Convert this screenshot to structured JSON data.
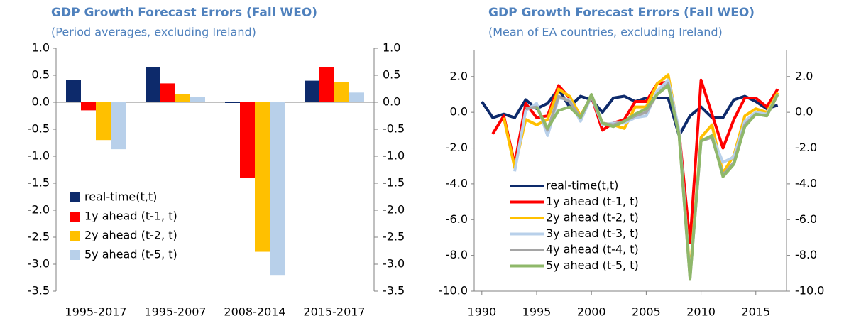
{
  "chart_data": [
    {
      "type": "bar",
      "title": "GDP Growth Forecast Errors (Fall  WEO)",
      "subtitle": "(Period averages, excluding Ireland)",
      "categories": [
        "1995-2017",
        "1995-2007",
        "2008-2014",
        "2015-2017"
      ],
      "series": [
        {
          "name": "real-time(t,t)",
          "color": "#0d2a6b",
          "values": [
            0.42,
            0.65,
            -0.01,
            0.4
          ]
        },
        {
          "name": "1y ahead (t-1, t)",
          "color": "#ff0000",
          "values": [
            -0.15,
            0.35,
            -1.4,
            0.65
          ]
        },
        {
          "name": "2y ahead (t-2, t)",
          "color": "#ffc000",
          "values": [
            -0.7,
            0.15,
            -2.77,
            0.37
          ]
        },
        {
          "name": "5y ahead (t-5, t)",
          "color": "#b8d0ea",
          "values": [
            -0.87,
            0.1,
            -3.2,
            0.18
          ]
        }
      ],
      "ylim": [
        -3.5,
        1.0
      ],
      "yticks": [
        {
          "value": 1.0,
          "label": "1.0"
        },
        0.5,
        {
          "value": 0.0,
          "label": "0.0"
        },
        -0.5,
        {
          "value": -1.0,
          "label": "-1.0"
        },
        -1.5,
        {
          "value": -2.0,
          "label": "-2.0"
        },
        -2.5,
        {
          "value": -3.0,
          "label": "-3.0"
        },
        -3.5
      ],
      "y2lim": [
        -3.5,
        1.0
      ],
      "y2ticks": [
        {
          "value": 1.0,
          "label": "1.0"
        },
        0.5,
        {
          "value": 0.0,
          "label": "0.0"
        },
        -0.5,
        {
          "value": -1.0,
          "label": "-1.0"
        },
        -1.5,
        {
          "value": -2.0,
          "label": "-2.0"
        },
        -2.5,
        {
          "value": -3.0,
          "label": "-3.0"
        },
        -3.5
      ],
      "legend": "lower left"
    },
    {
      "type": "line",
      "title": "GDP Growth Forecast Errors (Fall  WEO)",
      "subtitle": "(Mean of EA countries, excluding Ireland)",
      "x": [
        1990,
        1991,
        1992,
        1993,
        1994,
        1995,
        1996,
        1997,
        1998,
        1999,
        2000,
        2001,
        2002,
        2003,
        2004,
        2005,
        2006,
        2007,
        2008,
        2009,
        2010,
        2011,
        2012,
        2013,
        2014,
        2015,
        2016,
        2017
      ],
      "series": [
        {
          "name": "real-time(t,t)",
          "color": "#0d2a6b",
          "values": [
            0.6,
            -0.3,
            -0.1,
            -0.3,
            0.7,
            0.2,
            0.5,
            1.3,
            0.3,
            0.9,
            0.7,
            0.0,
            0.8,
            0.9,
            0.6,
            0.8,
            0.8,
            0.8,
            -1.3,
            -0.2,
            0.3,
            -0.3,
            -0.3,
            0.7,
            0.9,
            0.6,
            0.2,
            0.4
          ]
        },
        {
          "name": "1y ahead (t-1, t)",
          "color": "#ff0000",
          "values": [
            null,
            -1.2,
            -0.2,
            -2.9,
            0.5,
            -0.3,
            -0.2,
            1.5,
            0.8,
            -0.3,
            0.9,
            -1.0,
            -0.6,
            -0.4,
            0.6,
            0.6,
            1.6,
            1.7,
            -1.1,
            -7.3,
            1.8,
            -0.1,
            -2.0,
            -0.4,
            0.8,
            0.8,
            0.3,
            1.3
          ]
        },
        {
          "name": "2y ahead (t-2, t)",
          "color": "#ffc000",
          "values": [
            null,
            null,
            -0.3,
            -3.1,
            -0.4,
            -0.7,
            -0.4,
            1.3,
            0.9,
            -0.2,
            0.9,
            -0.6,
            -0.7,
            -0.9,
            0.3,
            0.3,
            1.6,
            2.1,
            -1.2,
            -9.0,
            -1.4,
            -0.7,
            -3.4,
            -2.4,
            -0.2,
            0.2,
            0.0,
            1.1
          ]
        },
        {
          "name": "3y ahead (t-3, t)",
          "color": "#b8d0ea",
          "values": [
            null,
            null,
            null,
            -3.3,
            0.1,
            0.5,
            -1.3,
            0.8,
            0.7,
            -0.5,
            0.9,
            -0.7,
            -0.6,
            -0.6,
            -0.3,
            -0.2,
            1.2,
            1.8,
            -1.0,
            -9.2,
            -1.6,
            -1.3,
            -2.8,
            -2.5,
            -0.5,
            0.0,
            -0.1,
            1.0
          ]
        },
        {
          "name": "4y ahead (t-4, t)",
          "color": "#a5a5a5",
          "values": [
            null,
            null,
            null,
            null,
            0.2,
            0.3,
            -1.0,
            0.9,
            0.6,
            -0.3,
            0.9,
            -0.6,
            -0.7,
            -0.5,
            -0.2,
            0.0,
            1.0,
            1.6,
            -1.2,
            -9.3,
            -1.6,
            -1.4,
            -3.5,
            -2.8,
            -0.7,
            -0.1,
            -0.2,
            1.0
          ]
        },
        {
          "name": "5y ahead (t-5, t)",
          "color": "#8fb86a",
          "values": [
            null,
            null,
            null,
            null,
            null,
            0.3,
            -0.9,
            0.1,
            0.3,
            -0.3,
            1.0,
            -0.6,
            -0.8,
            -0.5,
            -0.1,
            0.2,
            1.0,
            1.5,
            -1.3,
            -9.3,
            -1.6,
            -1.3,
            -3.6,
            -2.9,
            -0.8,
            -0.1,
            -0.2,
            1.0
          ]
        }
      ],
      "xlim": [
        1989.3,
        2017.8
      ],
      "xticks": [
        1990,
        1995,
        2000,
        2005,
        2010,
        2015
      ],
      "ylim": [
        -10,
        3.5
      ],
      "yticks": [
        {
          "value": 2.0,
          "label": "2.0"
        },
        {
          "value": 0.0,
          "label": "0.0"
        },
        {
          "value": -2.0,
          "label": "-2.0"
        },
        {
          "value": -4.0,
          "label": "-4.0"
        },
        {
          "value": -6.0,
          "label": "-6.0"
        },
        {
          "value": -8.0,
          "label": "-8.0"
        },
        {
          "value": -10.0,
          "label": "-10.0"
        }
      ],
      "y2lim": [
        -10,
        3.5
      ],
      "y2ticks": [
        {
          "value": 2.0,
          "label": "2.0"
        },
        {
          "value": 0.0,
          "label": "0.0"
        },
        {
          "value": -2.0,
          "label": "-2.0"
        },
        {
          "value": -4.0,
          "label": "-4.0"
        },
        {
          "value": -6.0,
          "label": "-6.0"
        },
        {
          "value": -8.0,
          "label": "-8.0"
        },
        {
          "value": -10.0,
          "label": "-10.0"
        }
      ],
      "legend": "lower left"
    }
  ]
}
